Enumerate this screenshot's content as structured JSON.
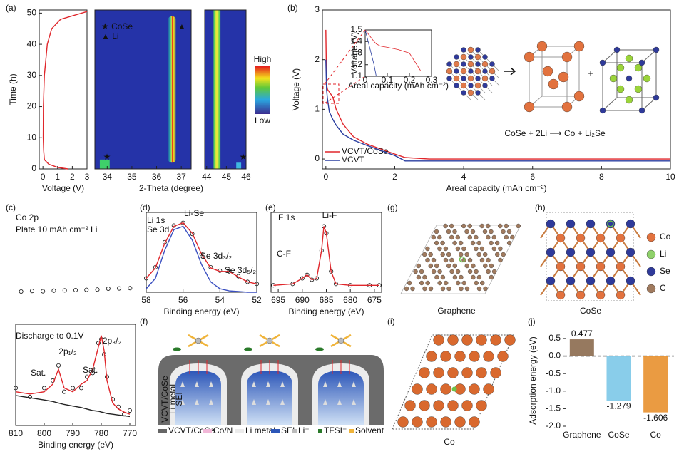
{
  "panel_labels": [
    "(a)",
    "(b)",
    "(c)",
    "(d)",
    "(e)",
    "(f)",
    "(g)",
    "(h)",
    "(i)",
    "(j)"
  ],
  "chart_data": [
    {
      "type": "line",
      "xlabel": "Voltage (V)",
      "ylabel": "Time (h)",
      "xlim": [
        -0.25,
        3
      ],
      "xticks": [
        0,
        1,
        2,
        3
      ],
      "ylim": [
        0,
        51
      ],
      "yticks": [
        0,
        10,
        20,
        30,
        40,
        50
      ],
      "x": [
        1.7,
        1.0,
        0.4,
        0.1,
        0.05,
        0.02,
        0.03,
        0.1,
        0.3,
        0.6,
        1.2,
        3.0
      ],
      "series": [
        {
          "color": "#e0262b",
          "values": [
            0,
            0.5,
            1.5,
            3,
            6,
            10,
            20,
            30,
            40,
            45,
            48,
            50.5
          ]
        }
      ]
    },
    {
      "type": "heatmap",
      "xlabel": "2-Theta (degree)",
      "xlim": [
        33.5,
        37.4
      ],
      "xticks": [
        34,
        35,
        36,
        37
      ],
      "ylim": [
        0,
        51
      ],
      "annotations": [
        "★ CoSe",
        "▲ Li",
        "▲",
        "★"
      ]
    },
    {
      "type": "heatmap",
      "xlim": [
        43.9,
        46
      ],
      "xticks": [
        44,
        45,
        46
      ],
      "ylim": [
        0,
        51
      ],
      "annotations": [
        "★"
      ],
      "colorbar": [
        "High",
        "Low"
      ]
    },
    {
      "type": "line",
      "xlabel": "Areal capacity (mAh cm⁻²)",
      "ylabel": "Voltage (V)",
      "xlim": [
        -0.1,
        10
      ],
      "xticks": [
        0,
        2,
        4,
        6,
        8,
        10
      ],
      "ylim": [
        -0.2,
        3
      ],
      "yticks": [
        0,
        1,
        2,
        3
      ],
      "legend": "lower left",
      "x": [
        0,
        0.02,
        0.05,
        0.1,
        0.2,
        0.3,
        0.5,
        0.8,
        1.2,
        1.6,
        2.0,
        2.3,
        3,
        10
      ],
      "series": [
        {
          "name": "VCVT/CoSe",
          "color": "#e0262b",
          "values": [
            2.6,
            1.5,
            1.4,
            1.35,
            1.25,
            1.0,
            0.7,
            0.45,
            0.3,
            0.2,
            0.1,
            0.03,
            0.0,
            0.0
          ]
        },
        {
          "name": "VCVT",
          "color": "#2a3ea0",
          "values": [
            2.0,
            1.4,
            1.2,
            0.95,
            0.8,
            0.68,
            0.5,
            0.38,
            0.27,
            0.17,
            0.07,
            -0.04,
            -0.04,
            -0.04
          ]
        }
      ]
    },
    {
      "type": "line",
      "xlabel": "Areal capacity (mAh cm⁻²)",
      "ylabel": "Voltage (V)",
      "xlim": [
        0,
        0.3
      ],
      "xticks": [
        0,
        0.1,
        0.2,
        0.3
      ],
      "ylim": [
        1.1,
        1.5
      ],
      "yticks": [
        1.1,
        1.2,
        1.3,
        1.4,
        1.5
      ],
      "x": [
        0,
        0.02,
        0.04,
        0.05,
        0.07,
        0.1,
        0.15,
        0.2,
        0.25
      ],
      "series": [
        {
          "color": "#e0262b",
          "values": [
            1.5,
            1.45,
            1.4,
            1.38,
            1.36,
            1.35,
            1.33,
            1.3,
            1.15
          ]
        },
        {
          "color": "#2a3ea0",
          "values": [
            1.5,
            1.35,
            1.2,
            1.1,
            null,
            null,
            null,
            null,
            null
          ]
        }
      ]
    },
    {
      "type": "scatter",
      "xlim": [
        812,
        768
      ],
      "ylim": [
        0,
        1
      ],
      "annotations": [
        "Co 2p",
        "Plate 10 mAh cm⁻² Li"
      ],
      "x": [
        810,
        806,
        802,
        798,
        794,
        790,
        786,
        782,
        778,
        774,
        770
      ],
      "series": [
        {
          "color": "#111111",
          "mode": "markers",
          "values": [
            0.4,
            0.42,
            0.41,
            0.43,
            0.44,
            0.45,
            0.46,
            0.47,
            0.5,
            0.51,
            0.52
          ]
        }
      ]
    },
    {
      "type": "line",
      "xlabel": "Binding energy (eV)",
      "xlim": [
        810,
        768
      ],
      "xticks": [
        810,
        800,
        790,
        780,
        770
      ],
      "ylim": [
        0,
        1.35
      ],
      "annotations": [
        "Discharge to 0.1V",
        "2p₁/₂",
        "2p₃/₂",
        "Sat.",
        "Sat."
      ],
      "x": [
        810,
        805,
        800,
        797,
        795,
        793,
        790,
        787,
        785,
        783,
        781,
        780,
        779,
        778,
        776,
        774,
        772,
        770
      ],
      "series": [
        {
          "color": "#111111",
          "mode": "markers",
          "values": [
            0.5,
            0.38,
            0.5,
            0.6,
            0.8,
            0.45,
            0.5,
            0.5,
            0.65,
            0.7,
            1.1,
            1.15,
            0.95,
            0.65,
            0.35,
            0.25,
            0.15,
            0.2
          ]
        },
        {
          "color": "#e0262b",
          "values": [
            0.45,
            0.42,
            0.45,
            0.55,
            0.75,
            0.5,
            0.45,
            0.55,
            0.6,
            0.75,
            1.05,
            1.2,
            1.0,
            0.6,
            0.3,
            0.22,
            0.18,
            0.15
          ]
        },
        {
          "color": "#222222",
          "values": [
            0.4,
            0.37,
            0.34,
            0.32,
            0.3,
            0.28,
            0.26,
            0.24,
            0.22,
            0.2,
            0.19,
            0.18,
            0.17,
            0.16,
            0.15,
            0.14,
            0.13,
            0.12
          ]
        }
      ]
    },
    {
      "type": "line",
      "xlabel": "Binding energy (eV)",
      "xlim": [
        58,
        52
      ],
      "xticks": [
        58,
        56,
        54,
        52
      ],
      "ylim": [
        0,
        1.15
      ],
      "annotations": [
        "Li 1s",
        "Se 3d",
        "Li-Se",
        "Se 3d₃/₂",
        "Se 3d₅/₂"
      ],
      "x": [
        58,
        57.5,
        57,
        56.5,
        56,
        55.5,
        55,
        54.5,
        54,
        53.5,
        53,
        52.5,
        52
      ],
      "series": [
        {
          "color": "#111111",
          "mode": "markers",
          "values": [
            0.2,
            0.36,
            0.72,
            0.96,
            1.0,
            0.84,
            0.55,
            0.36,
            0.31,
            0.3,
            0.23,
            0.15,
            0.12
          ]
        },
        {
          "color": "#e0262b",
          "values": [
            0.2,
            0.35,
            0.7,
            0.95,
            1.0,
            0.85,
            0.55,
            0.35,
            0.3,
            0.3,
            0.22,
            0.15,
            0.12
          ]
        },
        {
          "color": "#3a4fc0",
          "values": [
            0.05,
            0.2,
            0.6,
            0.9,
            0.95,
            0.75,
            0.4,
            0.15,
            0.05,
            0.02,
            0.01,
            0,
            0
          ]
        }
      ]
    },
    {
      "type": "line",
      "xlabel": "Binding energy (eV)",
      "xlim": [
        696.5,
        673.5
      ],
      "xticks": [
        695,
        690,
        685,
        680,
        675
      ],
      "ylim": [
        0,
        1.15
      ],
      "annotations": [
        "F 1s",
        "Li-F",
        "C-F"
      ],
      "x": [
        696,
        692,
        690,
        689,
        688,
        687,
        686,
        685.5,
        685,
        684,
        683,
        680,
        676,
        674
      ],
      "series": [
        {
          "color": "#111111",
          "mode": "markers",
          "values": [
            0.1,
            0.12,
            0.2,
            0.25,
            0.18,
            0.2,
            0.6,
            0.95,
            0.85,
            0.3,
            0.12,
            0.1,
            0.1,
            0.1
          ]
        },
        {
          "color": "#e0262b",
          "values": [
            0.1,
            0.12,
            0.2,
            0.25,
            0.18,
            0.2,
            0.6,
            0.95,
            0.85,
            0.3,
            0.12,
            0.1,
            0.1,
            0.1
          ]
        }
      ]
    },
    {
      "type": "bar",
      "ylabel": "Adsorption energy (eV)",
      "categories": [
        "Graphene",
        "CoSe",
        "Co"
      ],
      "values": [
        0.477,
        -1.279,
        -1.606
      ],
      "colors": [
        "#8b6a4e",
        "#7cc8e8",
        "#e8902e"
      ],
      "ylim": [
        -2.0,
        0.6
      ],
      "yticks": [
        {
          "value": -2,
          "label": "-2.0"
        },
        {
          "value": -1.5,
          "label": "-1.5"
        },
        {
          "value": -1,
          "label": "-1.0"
        },
        {
          "value": -0.5,
          "label": "-0.5"
        },
        {
          "value": 0,
          "label": "0.0"
        },
        {
          "value": 0.5,
          "label": "0.5"
        }
      ]
    }
  ],
  "equation": "CoSe + 2Li ⟶ Co + Li₂Se",
  "structures": {
    "g": "Graphene",
    "h": "CoSe",
    "i": "Co",
    "legend": [
      "Co",
      "Li",
      "Se",
      "C"
    ]
  },
  "schematic": {
    "legend": [
      "VCVT/CoSe",
      "Co/N",
      "Li metal",
      "SEI",
      "Li⁺",
      "TFSI⁻",
      "Solvent"
    ],
    "labels": [
      "VCVT/CoSe",
      "Li metal",
      "SEI"
    ]
  }
}
